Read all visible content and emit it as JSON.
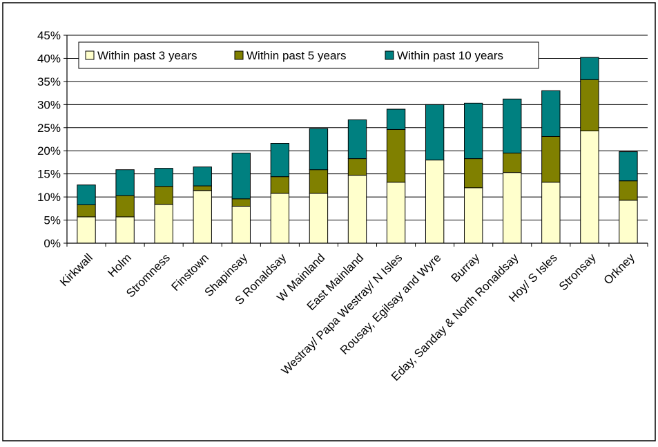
{
  "chart_data": {
    "type": "bar",
    "stacked": true,
    "title": "",
    "xlabel": "",
    "ylabel": "",
    "ylim": [
      0,
      45
    ],
    "y_tick_values": [
      0,
      5,
      10,
      15,
      20,
      25,
      30,
      35,
      40,
      45
    ],
    "y_tick_labels": [
      "0%",
      "5%",
      "10%",
      "15%",
      "20%",
      "25%",
      "30%",
      "35%",
      "40%",
      "45%"
    ],
    "grid": true,
    "legend_position": "top-left",
    "categories": [
      "Kirkwall",
      "Holm",
      "Stromness",
      "Finstown",
      "Shapinsay",
      "S Ronaldsay",
      "W Mainland",
      "East Mainland",
      "Westray/ Papa Westray/ N Isles",
      "Rousay, Egilsay and Wyre",
      "Burray",
      "Eday, Sanday & North Ronaldsay",
      "Hoy/ S Isles",
      "Stronsay",
      "Orkney"
    ],
    "series": [
      {
        "name": "Within past 3 years",
        "color": "#ffffcc",
        "values": [
          5.7,
          5.7,
          8.4,
          11.4,
          8.0,
          10.8,
          10.8,
          14.7,
          13.2,
          18.0,
          12.0,
          15.3,
          13.2,
          24.3,
          9.3
        ]
      },
      {
        "name": "Within past 5 years",
        "color": "#808000",
        "values": [
          2.6,
          4.6,
          3.9,
          1.0,
          1.6,
          3.6,
          5.1,
          3.6,
          11.4,
          0.0,
          6.3,
          4.2,
          9.9,
          11.1,
          4.2
        ]
      },
      {
        "name": "Within past 10 years",
        "color": "#008080",
        "values": [
          4.3,
          5.6,
          3.9,
          4.1,
          9.9,
          7.2,
          8.9,
          8.4,
          4.4,
          12.0,
          12.0,
          11.7,
          9.9,
          4.8,
          6.3
        ]
      }
    ]
  }
}
